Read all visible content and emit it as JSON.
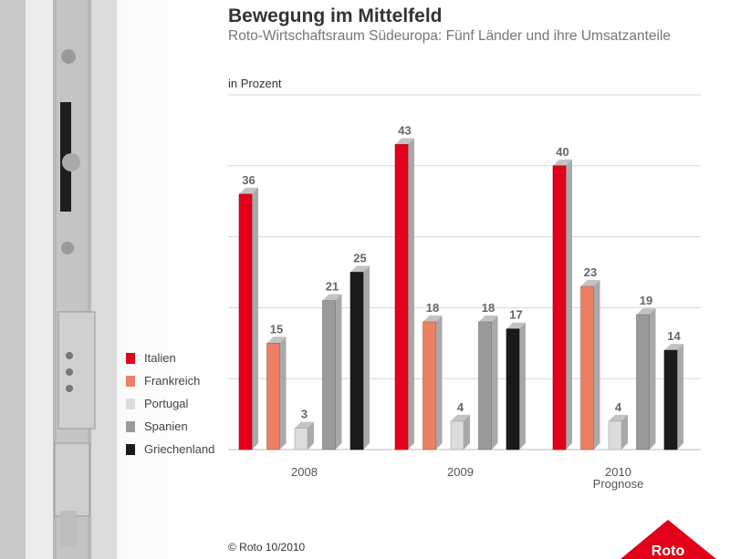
{
  "header": {
    "title": "Bewegung im Mittelfeld",
    "subtitle": "Roto-Wirtschaftsraum Südeuropa: Fünf Länder und ihre Umsatzanteile",
    "unit_label": "in Prozent"
  },
  "footer": {
    "copyright": "© Roto 10/2010"
  },
  "logo": {
    "text": "Roto",
    "color": "#e2001a"
  },
  "colors": {
    "Italien": "#e2001a",
    "Frankreich": "#ec7f64",
    "Portugal": "#dcdcdc",
    "Spanien": "#9a9a9a",
    "Griechenland": "#1a1a1a"
  },
  "chart_data": {
    "type": "bar",
    "title": "Bewegung im Mittelfeld",
    "subtitle": "Roto-Wirtschaftsraum Südeuropa: Fünf Länder und ihre Umsatzanteile",
    "ylabel": "in Prozent",
    "categories": [
      "2008",
      "2009",
      "2010"
    ],
    "category_sublabels": [
      "",
      "",
      "Prognose"
    ],
    "ylim": [
      0,
      50
    ],
    "grid": true,
    "legend_position": "left",
    "series": [
      {
        "name": "Italien",
        "values": [
          36,
          43,
          40
        ]
      },
      {
        "name": "Frankreich",
        "values": [
          15,
          18,
          23
        ]
      },
      {
        "name": "Portugal",
        "values": [
          3,
          4,
          4
        ]
      },
      {
        "name": "Spanien",
        "values": [
          21,
          18,
          19
        ]
      },
      {
        "name": "Griechenland",
        "values": [
          25,
          17,
          14
        ]
      }
    ]
  }
}
